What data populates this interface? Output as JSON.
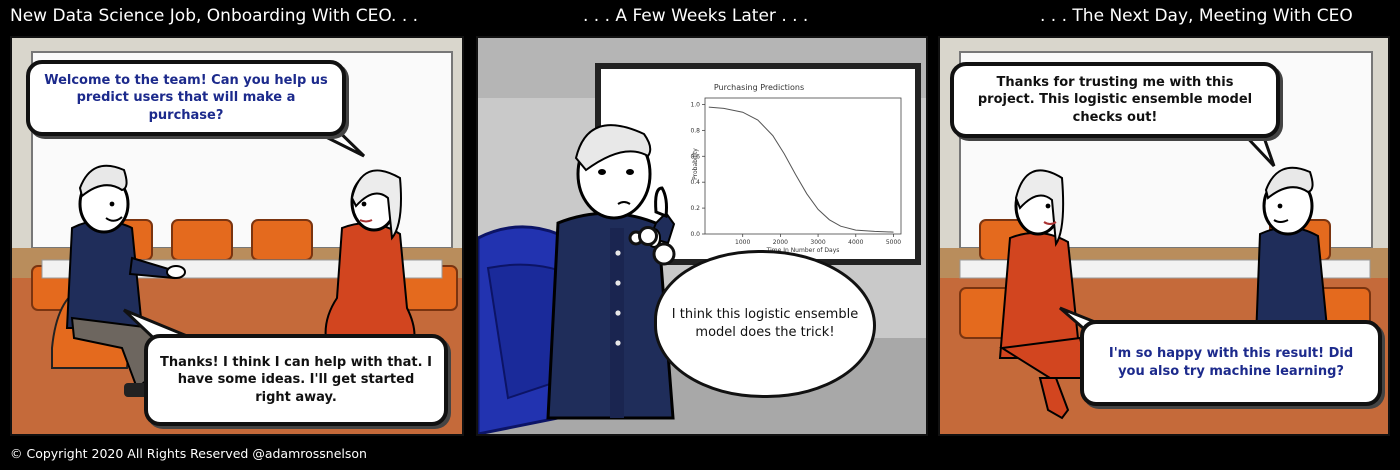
{
  "captions": {
    "panel1": "New Data Science Job, Onboarding With CEO. . .",
    "panel2": ". . . A Few Weeks Later . . .",
    "panel3": ". . . The Next Day, Meeting With CEO"
  },
  "copyright": "© Copyright 2020 All Rights Reserved @adamrossnelson",
  "panel1": {
    "ceo_bubble": "Welcome to the team! Can you help us predict users that will make a purchase?",
    "employee_bubble": "Thanks! I think I can help with that. I have some ideas. I'll get started right away."
  },
  "panel2": {
    "thought_bubble": "I think this logistic ensemble model does the trick!",
    "chart_data": {
      "type": "line",
      "title": "Purchasing Predictions",
      "xlabel": "Time In Number of Days",
      "ylabel": "Probability",
      "xlim": [
        0,
        5200
      ],
      "ylim": [
        0,
        1.05
      ],
      "x_ticks": [
        1000,
        2000,
        3000,
        4000,
        5000
      ],
      "y_ticks": [
        0.0,
        0.2,
        0.4,
        0.6,
        0.8,
        1.0
      ],
      "series": [
        {
          "x": [
            100,
            500,
            1000,
            1400,
            1800,
            2100,
            2400,
            2700,
            3000,
            3300,
            3600,
            4000,
            4500,
            5000
          ],
          "values": [
            0.98,
            0.97,
            0.94,
            0.88,
            0.76,
            0.62,
            0.46,
            0.31,
            0.19,
            0.11,
            0.06,
            0.03,
            0.02,
            0.015
          ]
        }
      ]
    }
  },
  "panel3": {
    "employee_bubble": "Thanks for trusting me with this project. This logistic ensemble model checks out!",
    "ceo_bubble": "I'm so happy with this result! Did you also try machine learning?"
  },
  "colors": {
    "wall": "#d9d6cc",
    "floor": "#c56a3a",
    "chair": "#e46a1e",
    "suit": "#1f2d5a",
    "dress": "#d2451f",
    "blue_text": "#1c2a8c",
    "armchair": "#2233b0"
  }
}
